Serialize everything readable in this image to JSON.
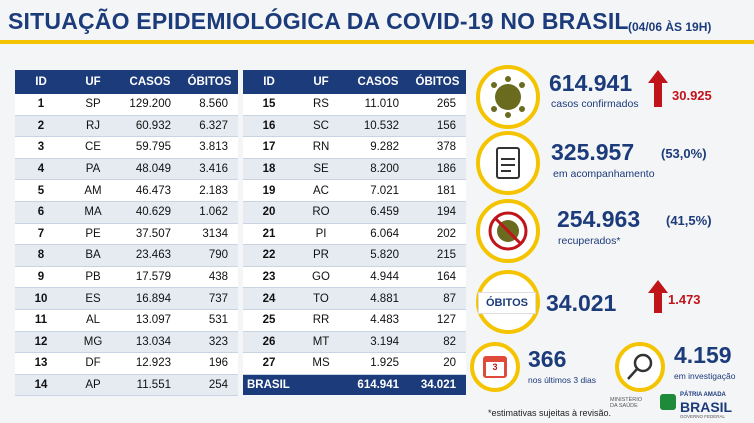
{
  "header": {
    "title": "SITUAÇÃO EPIDEMIOLÓGICA DA COVID-19 NO BRASIL",
    "date": "(04/06 ÀS 19H)"
  },
  "tables": [
    {
      "columns": [
        "ID",
        "UF",
        "CASOS",
        "ÓBITOS"
      ],
      "rows": [
        [
          "1",
          "SP",
          "129.200",
          "8.560"
        ],
        [
          "2",
          "RJ",
          "60.932",
          "6.327"
        ],
        [
          "3",
          "CE",
          "59.795",
          "3.813"
        ],
        [
          "4",
          "PA",
          "48.049",
          "3.416"
        ],
        [
          "5",
          "AM",
          "46.473",
          "2.183"
        ],
        [
          "6",
          "MA",
          "40.629",
          "1.062"
        ],
        [
          "7",
          "PE",
          "37.507",
          "3134"
        ],
        [
          "8",
          "BA",
          "23.463",
          "790"
        ],
        [
          "9",
          "PB",
          "17.579",
          "438"
        ],
        [
          "10",
          "ES",
          "16.894",
          "737"
        ],
        [
          "11",
          "AL",
          "13.097",
          "531"
        ],
        [
          "12",
          "MG",
          "13.034",
          "323"
        ],
        [
          "13",
          "DF",
          "12.923",
          "196"
        ],
        [
          "14",
          "AP",
          "11.551",
          "254"
        ]
      ]
    },
    {
      "columns": [
        "ID",
        "UF",
        "CASOS",
        "ÓBITOS"
      ],
      "rows": [
        [
          "15",
          "RS",
          "11.010",
          "265"
        ],
        [
          "16",
          "SC",
          "10.532",
          "156"
        ],
        [
          "17",
          "RN",
          "9.282",
          "378"
        ],
        [
          "18",
          "SE",
          "8.200",
          "186"
        ],
        [
          "19",
          "AC",
          "7.021",
          "181"
        ],
        [
          "20",
          "RO",
          "6.459",
          "194"
        ],
        [
          "21",
          "PI",
          "6.064",
          "202"
        ],
        [
          "22",
          "PR",
          "5.820",
          "215"
        ],
        [
          "23",
          "GO",
          "4.944",
          "164"
        ],
        [
          "24",
          "TO",
          "4.881",
          "87"
        ],
        [
          "25",
          "RR",
          "4.483",
          "127"
        ],
        [
          "26",
          "MT",
          "3.194",
          "82"
        ],
        [
          "27",
          "MS",
          "1.925",
          "20"
        ]
      ],
      "total": [
        "BRASIL",
        "614.941",
        "34.021"
      ]
    }
  ],
  "stats": {
    "confirmed": {
      "value": "614.941",
      "label": "casos confirmados",
      "delta": "30.925"
    },
    "monitoring": {
      "value": "325.957",
      "percent": "(53,0%)",
      "label": "em acompanhamento"
    },
    "recovered": {
      "value": "254.963",
      "percent": "(41,5%)",
      "label": "recuperados*"
    },
    "deaths": {
      "badge": "ÓBITOS",
      "value": "34.021",
      "delta": "1.473"
    },
    "recent": {
      "icon": "3",
      "value": "366",
      "label": "nos últimos 3 dias"
    },
    "investigation": {
      "value": "4.159",
      "label": "em investigação"
    }
  },
  "footnote": "*estimativas sujeitas à revisão.",
  "logos": {
    "ministry": "MINISTÉRIO DA SAÚDE",
    "line1": "PÁTRIA AMADA",
    "line2": "BRASIL",
    "line3": "GOVERNO FEDERAL"
  }
}
